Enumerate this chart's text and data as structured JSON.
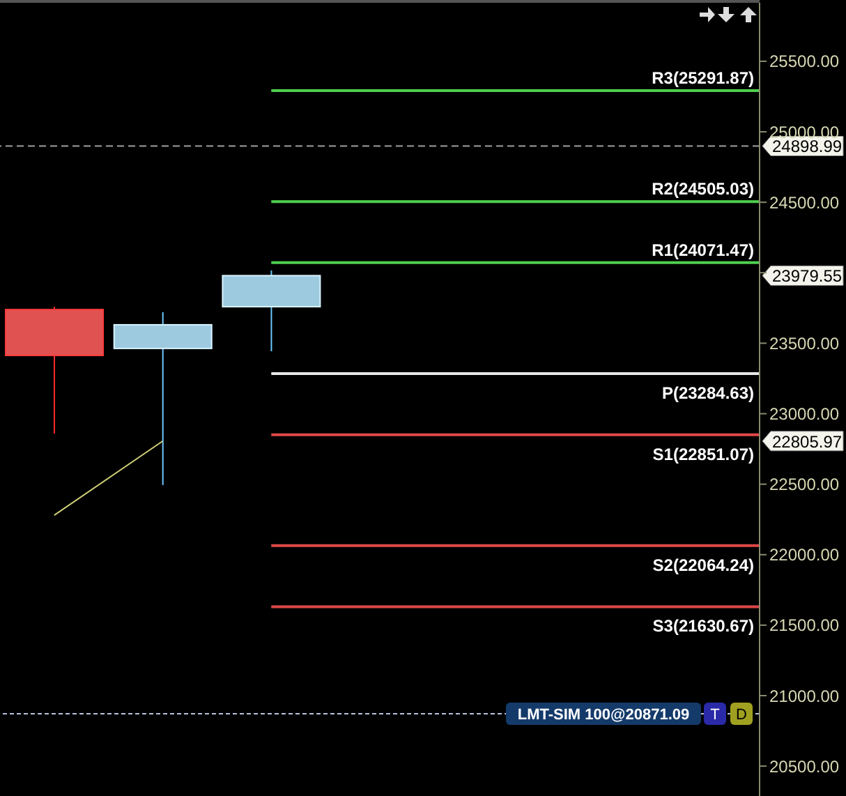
{
  "chart_data": {
    "type": "candlestick",
    "categories": [
      null,
      null,
      null,
      null,
      null,
      null,
      null
    ],
    "ohlc": [
      [
        23739,
        23759,
        22859,
        23413
      ],
      [
        23463,
        23720,
        22494,
        23631
      ],
      [
        23759,
        24016,
        23443,
        23979.55
      ],
      null,
      null,
      null,
      null
    ],
    "colors": [
      "#e05252",
      "#9ecae0",
      "#9ecae0",
      null,
      null,
      null,
      null
    ],
    "value_labels": [
      null,
      null,
      "23979.55",
      null,
      null,
      null,
      null
    ],
    "series": [
      {
        "type": "line",
        "color": "#cfcf78",
        "values": [
          22280,
          22805.97,
          null,
          null,
          null,
          null,
          null
        ]
      }
    ],
    "ylim": [
      20288,
      25915
    ],
    "yticks": [
      {
        "value": 20500,
        "label": "20500.00"
      },
      {
        "value": 21000,
        "label": "21000.00"
      },
      {
        "value": 21500,
        "label": "21500.00"
      },
      {
        "value": 22000,
        "label": "22000.00"
      },
      {
        "value": 22500,
        "label": "22500.00"
      },
      {
        "value": 23000,
        "label": "23000.00"
      },
      {
        "value": 23500,
        "label": "23500.00"
      },
      {
        "value": 24000,
        "label": null
      },
      {
        "value": 24500,
        "label": "24500.00"
      },
      {
        "value": 25000,
        "label": "25000.00"
      },
      {
        "value": 25500,
        "label": "25500.00"
      }
    ],
    "ref_lines": [
      {
        "axis": "y",
        "value": 25291.87,
        "label": "R3(25291.87)",
        "color": "#4fcf4f",
        "line_style": "solid"
      },
      {
        "axis": "y",
        "value": 24505.03,
        "label": "R2(24505.03)",
        "color": "#4fcf4f",
        "line_style": "solid"
      },
      {
        "axis": "y",
        "value": 24071.47,
        "label": "R1(24071.47)",
        "color": "#4fcf4f",
        "line_style": "solid"
      },
      {
        "axis": "y",
        "value": 23284.63,
        "label": "P(23284.63)",
        "color": "#e8e8e8",
        "line_style": "solid"
      },
      {
        "axis": "y",
        "value": 22851.07,
        "label": "S1(22851.07)",
        "color": "#e04848",
        "line_style": "solid"
      },
      {
        "axis": "y",
        "value": 22064.24,
        "label": "S2(22064.24)",
        "color": "#e04848",
        "line_style": "solid"
      },
      {
        "axis": "y",
        "value": 21630.67,
        "label": "S3(21630.67)",
        "color": "#e04848",
        "line_style": "solid"
      },
      {
        "axis": "y",
        "value": 24898.99,
        "label": "24898.99",
        "color": "#a0a0a0",
        "line_style": "dashed"
      },
      {
        "axis": "y",
        "value": 20871.09,
        "label": "LMT-SIM 100@20871.09",
        "color": "#b8c4e0",
        "line_style": "dotted"
      }
    ],
    "annotations": [
      "22805.97",
      "T",
      "D"
    ],
    "grid": false,
    "legend": false,
    "tick_labels": "y"
  }
}
